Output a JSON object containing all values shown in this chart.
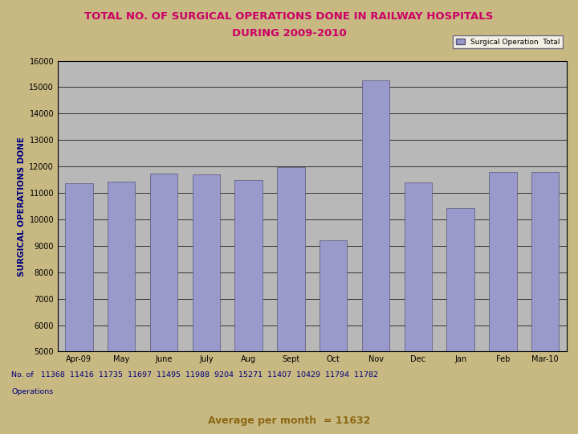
{
  "title1": "TOTAL NO. OF SURGICAL OPERATIONS DONE IN RAILWAY HOSPITALS",
  "title2": "DURING 2009-2010",
  "categories": [
    "Apr-09",
    "May",
    "June",
    "July",
    "Aug",
    "Sept",
    "Oct",
    "Nov",
    "Dec",
    "Jan",
    "Feb",
    "Mar-10"
  ],
  "values": [
    11368,
    11416,
    11735,
    11697,
    11495,
    11988,
    9204,
    15271,
    11407,
    10429,
    11794,
    11782
  ],
  "bar_color": "#9999cc",
  "bar_edge_color": "#555577",
  "ylabel": "SURGICAL OPERATIONS DONE",
  "ylim": [
    5000,
    16000
  ],
  "yticks": [
    5000,
    6000,
    7000,
    8000,
    9000,
    10000,
    11000,
    12000,
    13000,
    14000,
    15000,
    16000
  ],
  "legend_label": "Surgical Operation  Total",
  "background_color": "#c8b882",
  "plot_bg_color": "#b8b8b8",
  "title1_color": "#cc0066",
  "title2_color": "#cc0066",
  "ylabel_color": "#000080",
  "tick_color": "#000000",
  "note_color": "#000080",
  "avg_color": "#8B6914",
  "note_line1": "No. of   11368  11416  11735  11697  11495  11988  9204  15271  11407  10429  11794  11782",
  "note_line2": "Operations",
  "avg_text": "Average per month  = 11632"
}
